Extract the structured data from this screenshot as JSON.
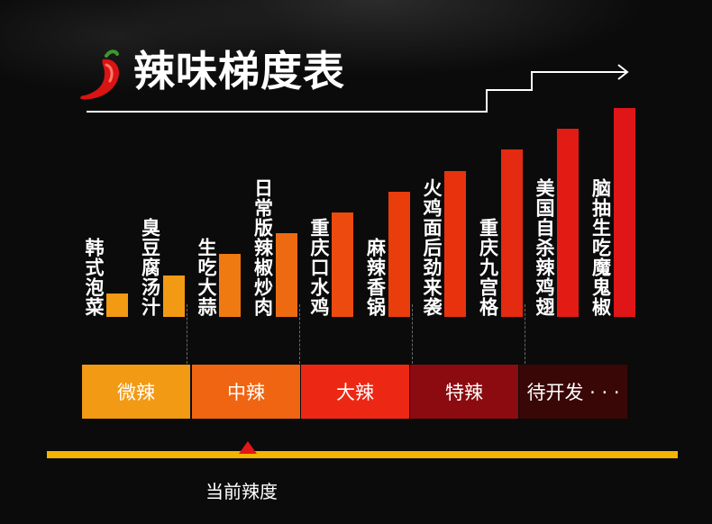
{
  "title": "辣味梯度表",
  "chart_data": {
    "type": "bar",
    "title": "辣味梯度表",
    "categories": [
      "韩式泡菜",
      "臭豆腐汤汁",
      "生吃大蒜",
      "日常版辣椒炒肉",
      "重庆口水鸡",
      "麻辣香锅",
      "火鸡面后劲来袭",
      "重庆九宫格",
      "美国自杀辣鸡翅",
      "脑抽生吃魔鬼椒"
    ],
    "values": [
      1,
      2,
      3,
      4,
      5,
      6,
      7,
      8,
      9,
      10
    ],
    "colors": [
      "#f29a13",
      "#f29a13",
      "#f07a12",
      "#ee6a10",
      "#ec4a0e",
      "#ea3d0c",
      "#e8320e",
      "#e42a10",
      "#e21c14",
      "#e01518"
    ],
    "ylim": [
      0,
      10
    ]
  },
  "levels": [
    {
      "label": "微辣",
      "color": "#f29a13"
    },
    {
      "label": "中辣",
      "color": "#ef6512"
    },
    {
      "label": "大辣",
      "color": "#ec2815"
    },
    {
      "label": "特辣",
      "color": "#8c0b10"
    },
    {
      "label": "待开发 · · ·",
      "color": "#3a0707"
    }
  ],
  "current_level": 2,
  "current_label": "当前辣度",
  "icons": {
    "chili": "chili-pepper-icon",
    "arrow": "stair-arrow-icon"
  }
}
